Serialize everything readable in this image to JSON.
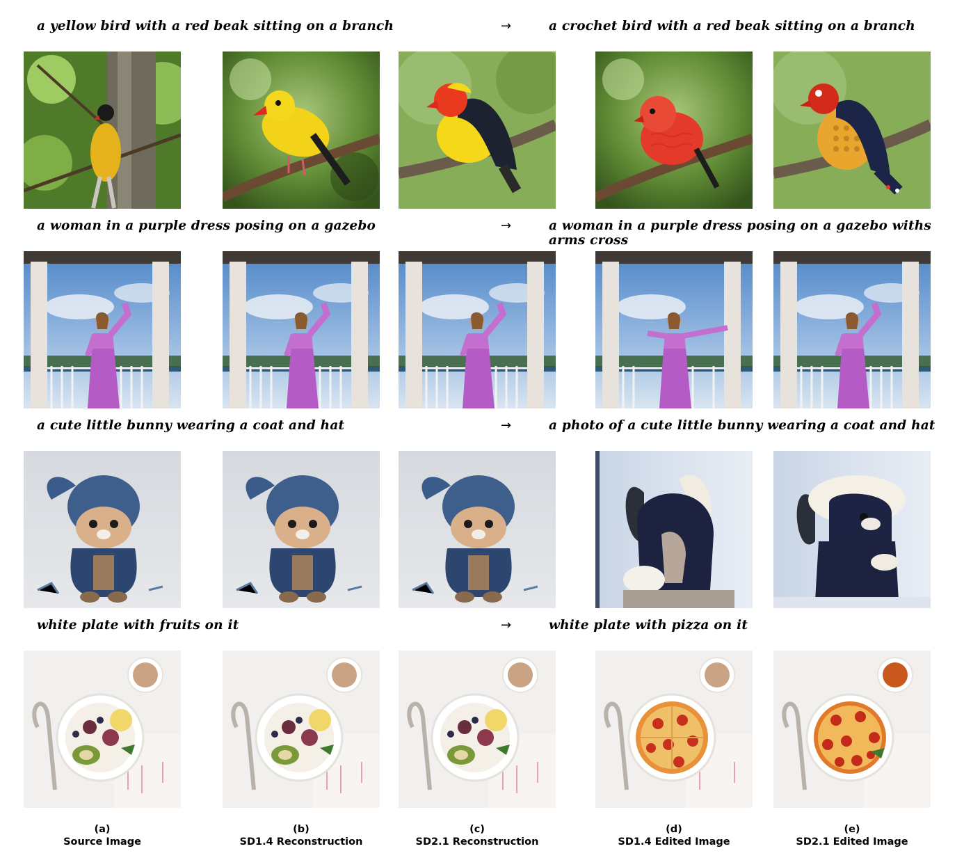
{
  "rows": [
    {
      "source_prompt": "a yellow bird with a red beak sitting on a branch",
      "arrow": "→",
      "target_prompt": "a crochet bird with a red beak sitting on a branch"
    },
    {
      "source_prompt": "a woman in a purple dress posing on a gazebo",
      "arrow": "→",
      "target_prompt": "a woman in a purple dress posing on a gazebo withs arms cross"
    },
    {
      "source_prompt": "a cute little bunny wearing a coat and hat",
      "arrow": "→",
      "target_prompt": "a photo of a cute little bunny wearing a coat and hat"
    },
    {
      "source_prompt": "white plate with fruits on it",
      "arrow": "→",
      "target_prompt": "white plate with pizza on it"
    }
  ],
  "columns": [
    {
      "letter": "(a)",
      "label": "Source Image"
    },
    {
      "letter": "(b)",
      "label": "SD1.4 Reconstruction"
    },
    {
      "letter": "(c)",
      "label": "SD2.1 Reconstruction"
    },
    {
      "letter": "(d)",
      "label": "SD1.4 Edited Image"
    },
    {
      "letter": "(e)",
      "label": "SD2.1 Edited Image"
    }
  ],
  "colors": {
    "bird_yellow": "#f3d21a",
    "bird_red": "#e0281d",
    "foliage_green": "#6f9b3c",
    "dress_purple": "#b45bc6",
    "sky_blue": "#6f9fd6",
    "bunny_navy": "#2c3f63",
    "plate_white": "#f4f4f4",
    "pizza_orange": "#e8913a"
  }
}
